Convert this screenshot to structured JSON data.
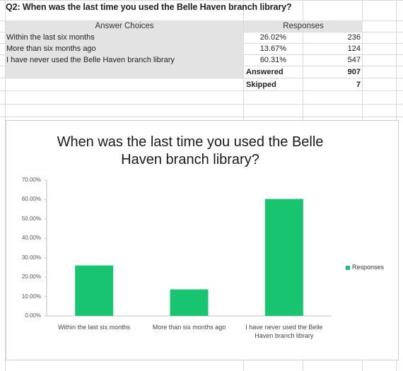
{
  "question": "Q2: When was the last time you used the Belle Haven branch library?",
  "table": {
    "headers": {
      "choices": "Answer Choices",
      "responses": "Responses"
    },
    "rows": [
      {
        "label": "Within the last six months",
        "percent": "26.02%",
        "count": "236"
      },
      {
        "label": "More than six months ago",
        "percent": "13.67%",
        "count": "124"
      },
      {
        "label": "I have never used the Belle Haven branch library",
        "percent": "60.31%",
        "count": "547"
      }
    ],
    "answered_label": "Answered",
    "answered_value": "907",
    "skipped_label": "Skipped",
    "skipped_value": "7"
  },
  "colors": {
    "bar": "#18c46f",
    "grid": "#d9d9d9",
    "header_shade": "#e3e3e3"
  },
  "chart_data": {
    "type": "bar",
    "title": "When was the last time you used the Belle Haven branch library?",
    "categories": [
      "Within the last six months",
      "More than six months ago",
      "I have never used the Belle Haven branch library"
    ],
    "series": [
      {
        "name": "Responses",
        "values": [
          26.02,
          13.67,
          60.31
        ]
      }
    ],
    "ylim": [
      0,
      70
    ],
    "yticks": [
      "0.00%",
      "10.00%",
      "20.00%",
      "30.00%",
      "40.00%",
      "50.00%",
      "60.00%",
      "70.00%"
    ],
    "legend": "right",
    "grid": false
  }
}
